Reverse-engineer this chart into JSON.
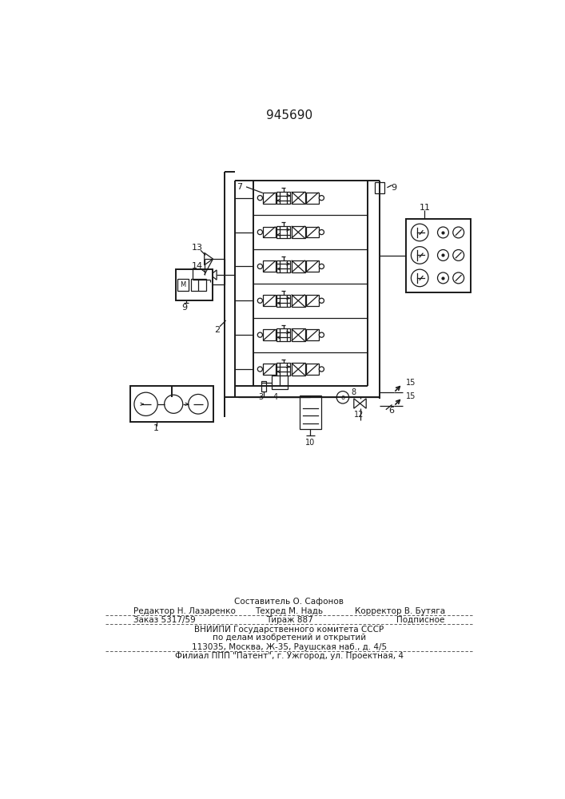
{
  "title": "945690",
  "bg_color": "#ffffff",
  "line_color": "#1a1a1a",
  "footer": {
    "composer": "Составитель О. Сафонов",
    "editor": "Редактор Н. Лазаренко",
    "techred": "Техред М. Надь",
    "corrector": "Корректор В. Бутяга",
    "order": "Заказ 5317/59",
    "tirazh": "Тираж 887",
    "podpisnoe": "Подписное",
    "vnipi": "ВНИИПИ Государственного комитета СССР",
    "po_delam": "по делам изобретений и открытий",
    "address": "113035, Москва, Ж-35, Раушская наб., д. 4/5",
    "filial": "Филиал ППП \"Патент\", г. Ужгород, ул. Проектная, 4"
  }
}
